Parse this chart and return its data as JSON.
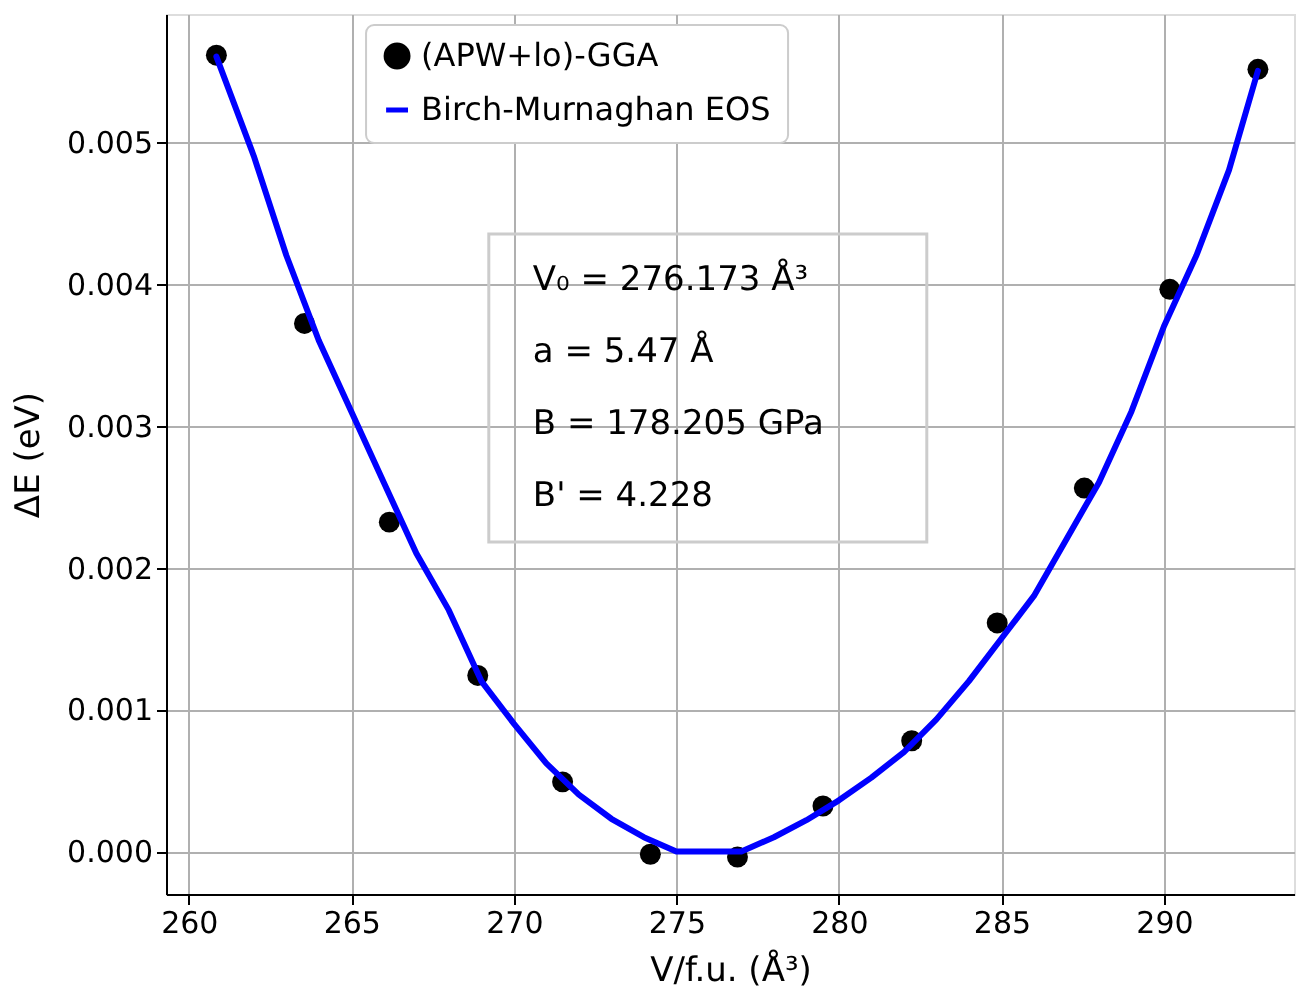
{
  "chart_data": {
    "type": "scatter",
    "xlabel": "V/f.u. (Å³)",
    "ylabel": "ΔE (eV)",
    "xlim": [
      259.3,
      294.0
    ],
    "xticks": [
      260,
      265,
      270,
      275,
      280,
      285,
      290
    ],
    "ylim": [
      -0.0003,
      0.0059
    ],
    "yticks": [
      {
        "value": 0,
        "label": "0.000"
      },
      {
        "value": 0.001,
        "label": "0.001"
      },
      {
        "value": 0.002,
        "label": "0.002"
      },
      {
        "value": 0.003,
        "label": "0.003"
      },
      {
        "value": 0.004,
        "label": "0.004"
      },
      {
        "value": 0.005,
        "label": "0.005"
      }
    ],
    "grid": true,
    "legend": "top",
    "annotations": [
      "V₀ = 276.173 Å³",
      "a = 5.47 Å",
      "B = 178.205 GPa",
      "B' = 4.228"
    ],
    "series": [
      {
        "name": "(APW+lo)-GGA",
        "marker": "circle",
        "color": "#000000",
        "x": [
          260.85,
          263.56,
          266.17,
          268.89,
          271.5,
          274.2,
          276.88,
          279.51,
          282.24,
          284.87,
          287.55,
          290.18,
          292.89
        ],
        "values": [
          0.00561,
          0.00372,
          0.00232,
          0.00124,
          0.00049,
          -2e-05,
          -4e-05,
          0.00032,
          0.00078,
          0.00161,
          0.00256,
          0.00396,
          0.00551
        ]
      },
      {
        "name": "Birch-Murnaghan EOS",
        "type": "line",
        "line_style": "solid",
        "color": "#0000ff",
        "x": [
          260.85,
          262,
          263,
          264,
          265,
          266,
          267,
          268,
          269,
          270,
          271,
          272,
          273,
          274,
          275,
          276.2,
          277,
          278,
          279,
          280,
          281,
          282,
          283,
          284,
          285,
          286,
          287,
          288,
          289,
          290,
          291,
          292,
          292.89
        ],
        "values": [
          0.0056,
          0.0049,
          0.0042,
          0.0036,
          0.0031,
          0.0026,
          0.0021,
          0.0017,
          0.0012,
          0.0009,
          0.00062,
          0.0004,
          0.00023,
          0.0001,
          0,
          0,
          0,
          0.0001,
          0.00022,
          0.00036,
          0.00052,
          0.0007,
          0.00093,
          0.0012,
          0.0015,
          0.0018,
          0.0022,
          0.0026,
          0.0031,
          0.0037,
          0.0042,
          0.0048,
          0.0055
        ]
      }
    ]
  }
}
